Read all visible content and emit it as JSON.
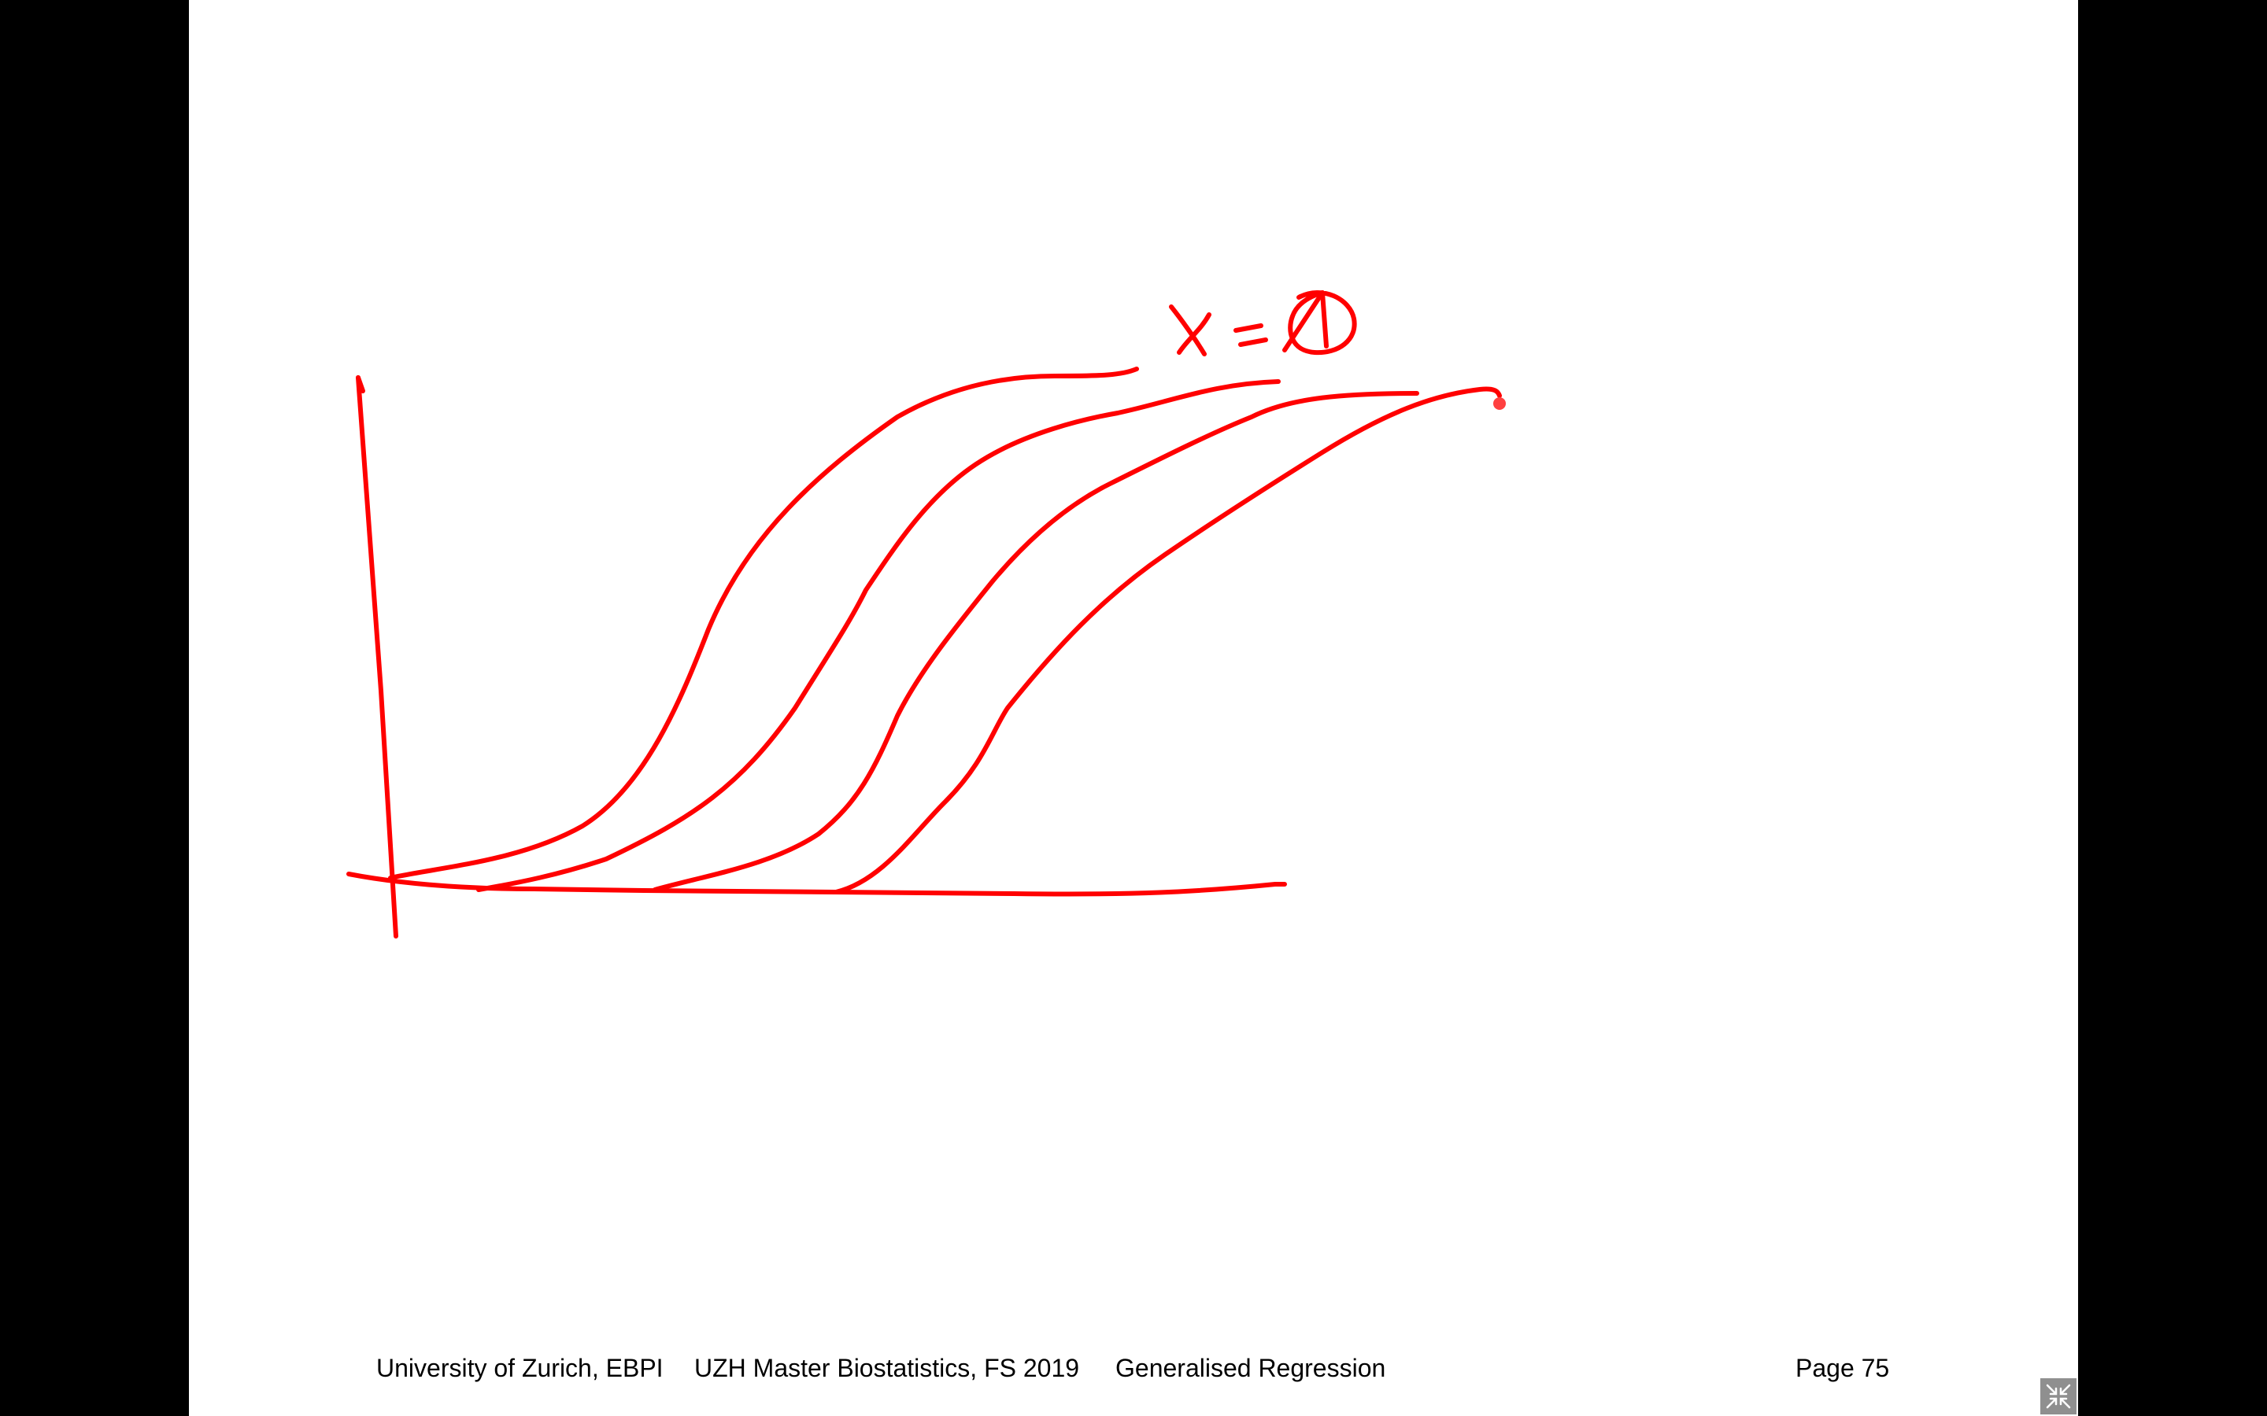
{
  "slide": {
    "annotation": {
      "label": "x = 1",
      "color": "#ff0000"
    },
    "footer": {
      "institution": "University of Zurich, EBPI",
      "course": "UZH Master Biostatistics, FS 2019",
      "topic": "Generalised Regression",
      "page": "Page 75"
    }
  },
  "controls": {
    "exit_fullscreen_icon": "compress-arrows-icon"
  },
  "colors": {
    "background": "#000000",
    "slide": "#ffffff",
    "ink": "#ff0000",
    "control": "#8f8f8f"
  }
}
